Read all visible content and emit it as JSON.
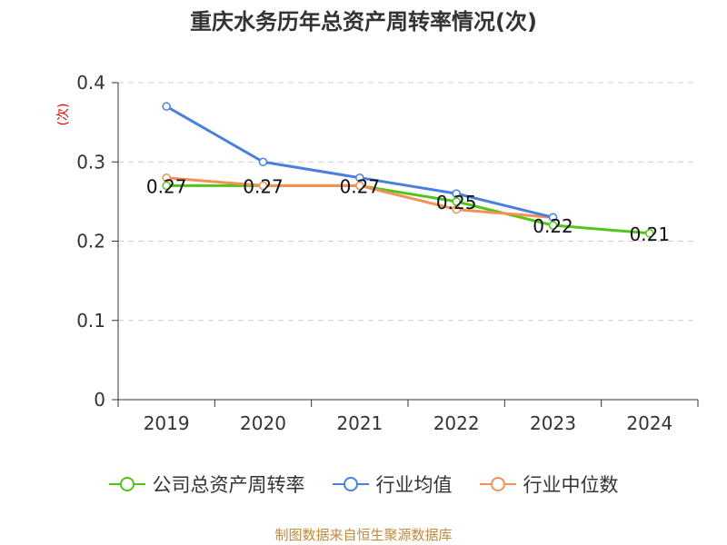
{
  "title": "重庆水务历年总资产周转率情况(次)",
  "source": "制图数据来自恒生聚源数据库",
  "colors": {
    "company": "#52c41a",
    "industry_avg": "#4a7fdc",
    "industry_median": "#f59158",
    "grid": "#cccccc",
    "axis": "#333333",
    "unit_label": "#e00000"
  },
  "chart_data": {
    "type": "line",
    "title": "重庆水务历年总资产周转率情况(次)",
    "ylabel": "(次)",
    "xlabel": "",
    "categories": [
      "2019",
      "2020",
      "2021",
      "2022",
      "2023",
      "2024"
    ],
    "ylim": [
      0,
      0.4
    ],
    "yticks": [
      "0",
      "0.1",
      "0.2",
      "0.3",
      "0.4"
    ],
    "grid": true,
    "legend_position": "bottom",
    "series": [
      {
        "name": "公司总资产周转率",
        "values": [
          0.27,
          0.27,
          0.27,
          0.25,
          0.22,
          0.21
        ],
        "labels": [
          "0.27",
          "0.27",
          "0.27",
          "0.25",
          "0.22",
          "0.21"
        ]
      },
      {
        "name": "行业均值",
        "values": [
          0.37,
          0.3,
          0.28,
          0.26,
          0.23,
          null
        ]
      },
      {
        "name": "行业中位数",
        "values": [
          0.28,
          0.27,
          0.27,
          0.24,
          0.23,
          null
        ]
      }
    ]
  }
}
